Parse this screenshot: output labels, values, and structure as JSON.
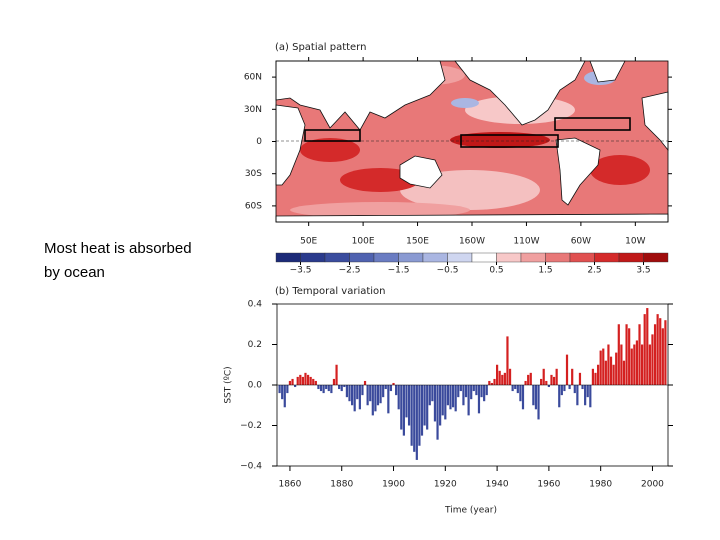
{
  "slide_text": "Most heat is absorbed by ocean",
  "chart_data": [
    {
      "type": "map",
      "title": "(a) Spatial pattern",
      "xlim": [
        20,
        380
      ],
      "ylim": [
        -75,
        75
      ],
      "xticks": [
        {
          "value": 50,
          "label": "50E"
        },
        {
          "value": 100,
          "label": "100E"
        },
        {
          "value": 150,
          "label": "150E"
        },
        {
          "value": 200,
          "label": "160W"
        },
        {
          "value": 250,
          "label": "110W"
        },
        {
          "value": 300,
          "label": "60W"
        },
        {
          "value": 350,
          "label": "10W"
        }
      ],
      "yticks": [
        {
          "value": 60,
          "label": "60N"
        },
        {
          "value": 30,
          "label": "30N"
        },
        0,
        {
          "value": -30,
          "label": "30S"
        },
        {
          "value": -60,
          "label": "60S"
        }
      ],
      "colorbar": {
        "lim": [
          -4,
          4
        ],
        "ticks": [
          {
            "value": -3.5,
            "label": "−3.5"
          },
          {
            "value": -2.5,
            "label": "−2.5"
          },
          {
            "value": -1.5,
            "label": "−1.5"
          },
          {
            "value": -0.5,
            "label": "−0.5"
          },
          0.5,
          1.5,
          2.5,
          3.5
        ],
        "colors": [
          "#1c2a78",
          "#2a3a8c",
          "#3a4c9e",
          "#4f62b0",
          "#6a7cc2",
          "#8a9ad2",
          "#aab6e2",
          "#cfd6f0",
          "#ffffff",
          "#f7c8c8",
          "#f0a0a0",
          "#e87878",
          "#e05050",
          "#d42a2a",
          "#c01818",
          "#a00c0c"
        ]
      }
    },
    {
      "type": "bar",
      "title": "(b) Temporal variation",
      "xlabel": "Time (year)",
      "ylabel": "SST (ºC)",
      "positive_color": "#d42020",
      "negative_color": "#3a4a9c",
      "xlim": [
        1855,
        2006
      ],
      "xticks": [
        1860,
        1880,
        1900,
        1920,
        1940,
        1960,
        1980,
        2000
      ],
      "ylim": [
        -0.4,
        0.4
      ],
      "yticks": [
        {
          "value": -0.4,
          "label": "−0.4"
        },
        {
          "value": -0.2,
          "label": "−0.2"
        },
        {
          "value": 0,
          "label": "0.0"
        },
        0.2,
        0.4
      ],
      "x": [
        1856,
        1857,
        1858,
        1859,
        1860,
        1861,
        1862,
        1863,
        1864,
        1865,
        1866,
        1867,
        1868,
        1869,
        1870,
        1871,
        1872,
        1873,
        1874,
        1875,
        1876,
        1877,
        1878,
        1879,
        1880,
        1881,
        1882,
        1883,
        1884,
        1885,
        1886,
        1887,
        1888,
        1889,
        1890,
        1891,
        1892,
        1893,
        1894,
        1895,
        1896,
        1897,
        1898,
        1899,
        1900,
        1901,
        1902,
        1903,
        1904,
        1905,
        1906,
        1907,
        1908,
        1909,
        1910,
        1911,
        1912,
        1913,
        1914,
        1915,
        1916,
        1917,
        1918,
        1919,
        1920,
        1921,
        1922,
        1923,
        1924,
        1925,
        1926,
        1927,
        1928,
        1929,
        1930,
        1931,
        1932,
        1933,
        1934,
        1935,
        1936,
        1937,
        1938,
        1939,
        1940,
        1941,
        1942,
        1943,
        1944,
        1945,
        1946,
        1947,
        1948,
        1949,
        1950,
        1951,
        1952,
        1953,
        1954,
        1955,
        1956,
        1957,
        1958,
        1959,
        1960,
        1961,
        1962,
        1963,
        1964,
        1965,
        1966,
        1967,
        1968,
        1969,
        1970,
        1971,
        1972,
        1973,
        1974,
        1975,
        1976,
        1977,
        1978,
        1979,
        1980,
        1981,
        1982,
        1983,
        1984,
        1985,
        1986,
        1987,
        1988,
        1989,
        1990,
        1991,
        1992,
        1993,
        1994,
        1995,
        1996,
        1997,
        1998,
        1999,
        2000,
        2001,
        2002,
        2003,
        2004,
        2005
      ],
      "values": [
        -0.04,
        -0.07,
        -0.11,
        -0.04,
        0.02,
        0.03,
        -0.01,
        0.04,
        0.05,
        0.04,
        0.06,
        0.05,
        0.04,
        0.03,
        0.02,
        -0.02,
        -0.03,
        -0.04,
        -0.02,
        -0.03,
        -0.04,
        0.03,
        0.1,
        -0.02,
        -0.03,
        -0.01,
        -0.06,
        -0.08,
        -0.1,
        -0.13,
        -0.07,
        -0.12,
        -0.05,
        0.02,
        -0.1,
        -0.08,
        -0.15,
        -0.13,
        -0.1,
        -0.09,
        -0.06,
        -0.02,
        -0.14,
        -0.03,
        0.01,
        -0.05,
        -0.12,
        -0.22,
        -0.25,
        -0.16,
        -0.2,
        -0.3,
        -0.33,
        -0.37,
        -0.3,
        -0.25,
        -0.2,
        -0.22,
        -0.1,
        -0.08,
        -0.18,
        -0.27,
        -0.2,
        -0.15,
        -0.17,
        -0.1,
        -0.12,
        -0.11,
        -0.13,
        -0.06,
        -0.03,
        -0.1,
        -0.06,
        -0.15,
        -0.07,
        -0.03,
        -0.05,
        -0.14,
        -0.06,
        -0.08,
        -0.05,
        0.02,
        0.01,
        0.03,
        0.1,
        0.07,
        0.05,
        0.06,
        0.24,
        0.08,
        -0.03,
        -0.02,
        -0.04,
        -0.08,
        -0.12,
        0.02,
        0.05,
        0.06,
        -0.1,
        -0.12,
        -0.17,
        0.03,
        0.08,
        0.02,
        -0.01,
        0.05,
        0.04,
        0.08,
        -0.11,
        -0.05,
        -0.03,
        0.15,
        -0.02,
        0.08,
        -0.04,
        -0.1,
        0.06,
        -0.02,
        -0.1,
        -0.06,
        -0.11,
        0.08,
        0.06,
        0.1,
        0.17,
        0.18,
        0.12,
        0.2,
        0.14,
        0.1,
        0.16,
        0.3,
        0.2,
        0.12,
        0.3,
        0.28,
        0.18,
        0.2,
        0.22,
        0.3,
        0.2,
        0.35,
        0.38,
        0.2,
        0.25,
        0.3,
        0.35,
        0.33,
        0.28,
        0.32
      ]
    }
  ]
}
